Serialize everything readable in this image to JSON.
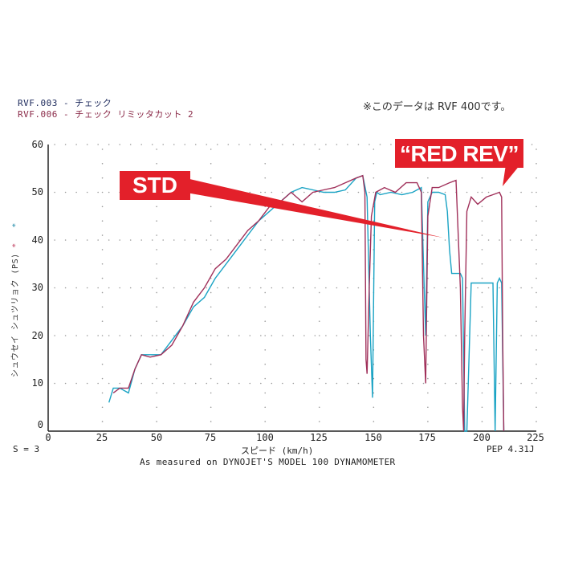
{
  "legend": {
    "line1": "RVF.003 - チェック",
    "line2": "RVF.006 - チェック  リミッタカット 2"
  },
  "note": "※このデータは RVF 400です。",
  "axes": {
    "ylabel": "シュウセイ シュツリョク (PS)",
    "ylabel_markers": [
      "*",
      "*"
    ],
    "xlabel": "スピード (km/h)",
    "yticks": [
      "60",
      "50",
      "40",
      "30",
      "20",
      "10",
      "0"
    ],
    "xticks": [
      "0",
      "25",
      "50",
      "75",
      "100",
      "125",
      "150",
      "175",
      "200",
      "225"
    ]
  },
  "footer": {
    "smoothing": "S = 3",
    "version": "PEP 4.31J",
    "caption": "As measured on DYNOJET'S MODEL 100 DYNAMOMETER"
  },
  "annotations": {
    "std": "STD",
    "red_rev": "“RED REV”"
  },
  "colors": {
    "std_series": "#1aa3c4",
    "red_rev_series": "#a0305a",
    "callout": "#e3202a"
  },
  "chart_data": {
    "type": "line",
    "title": "",
    "xlabel": "スピード (km/h)",
    "ylabel": "シュウセイ シュツリョク (PS)",
    "xlim": [
      0,
      225
    ],
    "ylim": [
      0,
      60
    ],
    "grid": true,
    "legend_position": "top-left",
    "series": [
      {
        "name": "RVF.003 - チェック (STD)",
        "color": "#1aa3c4",
        "x": [
          28,
          30,
          33,
          37,
          40,
          43,
          47,
          52,
          57,
          62,
          67,
          72,
          77,
          82,
          87,
          92,
          97,
          102,
          107,
          112,
          117,
          122,
          127,
          132,
          137,
          142,
          145,
          147,
          148.5,
          149.5,
          150.5,
          151.5,
          153,
          158,
          163,
          168,
          172,
          173,
          174,
          175,
          177,
          180,
          183,
          184,
          185,
          186,
          187,
          190,
          191,
          192,
          193,
          195,
          200,
          205,
          206,
          207,
          208,
          209,
          210
        ],
        "y": [
          6,
          9,
          9,
          8,
          13,
          16,
          16,
          16,
          19,
          22,
          26,
          28,
          32,
          35,
          38,
          41,
          44,
          46,
          48,
          50,
          51,
          50.5,
          50,
          50,
          50.5,
          53,
          53.5,
          49,
          20,
          7,
          48,
          50,
          49.5,
          50,
          49.5,
          50,
          51,
          35,
          20,
          48,
          50,
          50,
          49.5,
          46,
          38,
          33,
          33,
          33,
          32,
          0,
          0,
          31,
          31,
          31,
          0,
          31,
          32,
          31,
          0
        ]
      },
      {
        "name": "RVF.006 - チェック リミッタカット 2 (RED REV)",
        "color": "#a0305a",
        "x": [
          30,
          33,
          37,
          40,
          43,
          47,
          52,
          57,
          62,
          67,
          72,
          77,
          82,
          87,
          92,
          97,
          102,
          107,
          112,
          117,
          122,
          127,
          132,
          137,
          142,
          145,
          146,
          146.5,
          147,
          148,
          149,
          151,
          155,
          160,
          165,
          170,
          172,
          173,
          174,
          175,
          177,
          180,
          185,
          188,
          190,
          191,
          191.5,
          192,
          193,
          195,
          198,
          202,
          205,
          208,
          209,
          209.5,
          210
        ],
        "y": [
          8,
          9,
          9,
          13,
          16,
          15.5,
          16,
          18,
          22,
          27,
          30,
          34,
          36,
          39,
          42,
          44,
          47,
          48,
          50,
          48,
          50,
          50.5,
          51,
          52,
          53,
          53.5,
          50,
          15,
          12,
          30,
          45,
          50,
          51,
          50,
          52,
          52,
          50,
          20,
          10,
          45,
          51,
          51,
          52,
          52.5,
          30,
          5,
          0,
          20,
          46,
          49,
          47.5,
          49,
          49.5,
          50,
          49,
          20,
          0
        ]
      }
    ]
  }
}
